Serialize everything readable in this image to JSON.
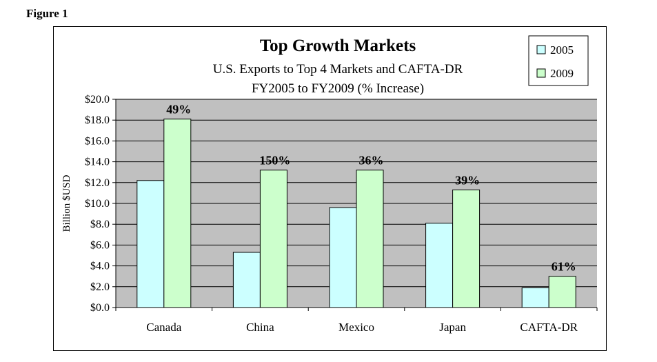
{
  "figure_label": "Figure 1",
  "chart_data": {
    "type": "bar",
    "title": "Top Growth Markets",
    "subtitle_lines": [
      "U.S. Exports to Top 4 Markets and CAFTA-DR",
      "FY2005 to FY2009 (% Increase)"
    ],
    "xlabel": "",
    "ylabel": "Billion $USD",
    "ylim": [
      0,
      20
    ],
    "yticks": [
      "$0.0",
      "$2.0",
      "$4.0",
      "$6.0",
      "$8.0",
      "$10.0",
      "$12.0",
      "$14.0",
      "$16.0",
      "$18.0",
      "$20.0"
    ],
    "grid": true,
    "legend_position": "top-right",
    "categories": [
      "Canada",
      "China",
      "Mexico",
      "Japan",
      "CAFTA-DR"
    ],
    "series": [
      {
        "name": "2005",
        "values": [
          12.2,
          5.3,
          9.6,
          8.1,
          1.9
        ],
        "color": "#ccffff"
      },
      {
        "name": "2009",
        "values": [
          18.1,
          13.2,
          13.2,
          11.3,
          3.0
        ],
        "color": "#ccffcc"
      }
    ],
    "annotations": [
      "49%",
      "150%",
      "36%",
      "39%",
      "61%"
    ],
    "colors": {
      "plot_background": "#c0c0c0",
      "bar_edge": "#000000"
    }
  }
}
